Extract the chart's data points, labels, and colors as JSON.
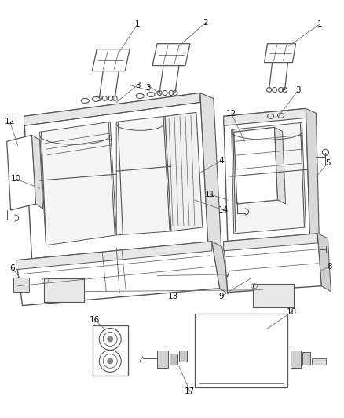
{
  "bg_color": "#ffffff",
  "line_color": "#555555",
  "callout_color": "#777777",
  "figure_width": 4.38,
  "figure_height": 5.33,
  "dpi": 100
}
